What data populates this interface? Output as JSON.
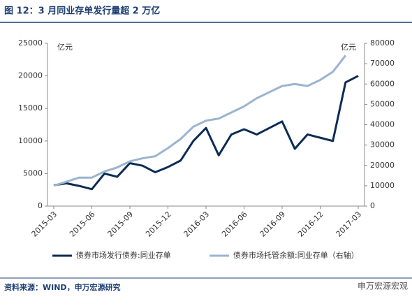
{
  "title": "图 12：3 月同业存单发行量超 2 万亿",
  "source": "资料来源：WIND，申万宏源研究",
  "watermark": "申万宏源宏观",
  "chart_data": {
    "type": "line",
    "categories": [
      "2015-03",
      null,
      null,
      "2015-06",
      null,
      null,
      "2015-09",
      null,
      null,
      "2015-12",
      null,
      null,
      "2016-03",
      null,
      null,
      "2016-06",
      null,
      null,
      "2016-09",
      null,
      null,
      "2016-12",
      null,
      null,
      "2017-03"
    ],
    "y_unit": "亿元",
    "y2_unit": "亿元",
    "ylim": [
      0,
      25000
    ],
    "yticks": [
      0,
      5000,
      10000,
      15000,
      20000,
      25000
    ],
    "y2lim": [
      0,
      80000
    ],
    "y2ticks": [
      0,
      10000,
      20000,
      30000,
      40000,
      50000,
      60000,
      70000,
      80000
    ],
    "legend": "bottom",
    "series": [
      {
        "name": "债券市场发行债券:同业存单",
        "color": "#0d2c54",
        "values": [
          3200,
          3500,
          3100,
          2600,
          5000,
          4500,
          6600,
          6200,
          5200,
          6000,
          7000,
          10000,
          12000,
          7800,
          11000,
          11800,
          11000,
          12000,
          13000,
          8800,
          11000,
          10500,
          10000,
          19000,
          20000
        ]
      },
      {
        "name": "债券市场托管余额:同业存单（右轴）",
        "color": "#9bb4d0",
        "axis": "y2",
        "values": [
          10000,
          12000,
          14000,
          14000,
          17000,
          19000,
          22000,
          23500,
          24500,
          28500,
          33000,
          39000,
          42000,
          43000,
          46000,
          49000,
          53000,
          56000,
          59000,
          60000,
          59000,
          62000,
          66000,
          74000,
          null
        ]
      }
    ]
  }
}
